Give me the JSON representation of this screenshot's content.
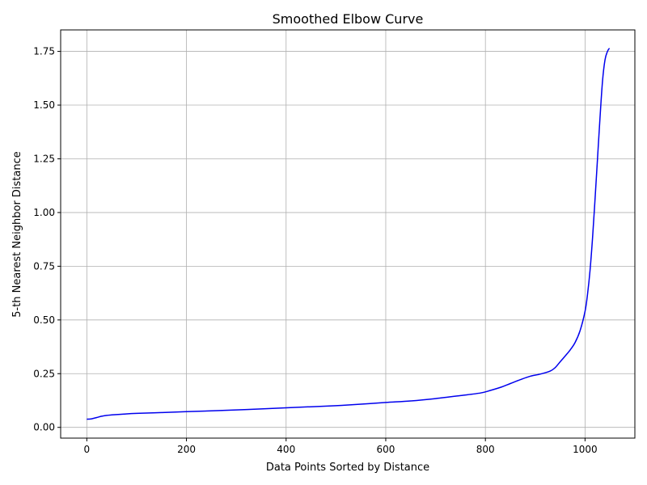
{
  "chart_data": {
    "type": "line",
    "title": "Smoothed Elbow Curve",
    "xlabel": "Data Points Sorted by Distance",
    "ylabel": "5-th Nearest Neighbor Distance",
    "xlim": [
      -52.5,
      1100
    ],
    "ylim": [
      -0.05,
      1.85
    ],
    "xticks": [
      0,
      200,
      400,
      600,
      800,
      1000
    ],
    "xtick_labels": [
      "0",
      "200",
      "400",
      "600",
      "800",
      "1000"
    ],
    "yticks": [
      0.0,
      0.25,
      0.5,
      0.75,
      1.0,
      1.25,
      1.5,
      1.75
    ],
    "ytick_labels": [
      "0.00",
      "0.25",
      "0.50",
      "0.75",
      "1.00",
      "1.25",
      "1.50",
      "1.75"
    ],
    "grid": true,
    "legend": "none",
    "color": "#0000ee",
    "series": [
      {
        "x": [
          0,
          10,
          20,
          30,
          40,
          50,
          75,
          100,
          150,
          200,
          250,
          300,
          350,
          400,
          450,
          500,
          550,
          600,
          650,
          700,
          750,
          790,
          810,
          830,
          850,
          870,
          890,
          910,
          930,
          940,
          950,
          960,
          970,
          980,
          990,
          1000,
          1005,
          1010,
          1015,
          1020,
          1025,
          1030,
          1035,
          1040,
          1045,
          1049
        ],
        "y": [
          0.038,
          0.04,
          0.046,
          0.052,
          0.056,
          0.058,
          0.062,
          0.065,
          0.069,
          0.073,
          0.077,
          0.081,
          0.086,
          0.091,
          0.096,
          0.101,
          0.108,
          0.116,
          0.123,
          0.134,
          0.148,
          0.16,
          0.172,
          0.186,
          0.204,
          0.222,
          0.238,
          0.248,
          0.262,
          0.278,
          0.305,
          0.332,
          0.36,
          0.395,
          0.45,
          0.54,
          0.62,
          0.73,
          0.88,
          1.06,
          1.25,
          1.44,
          1.61,
          1.71,
          1.75,
          1.765
        ]
      }
    ]
  }
}
